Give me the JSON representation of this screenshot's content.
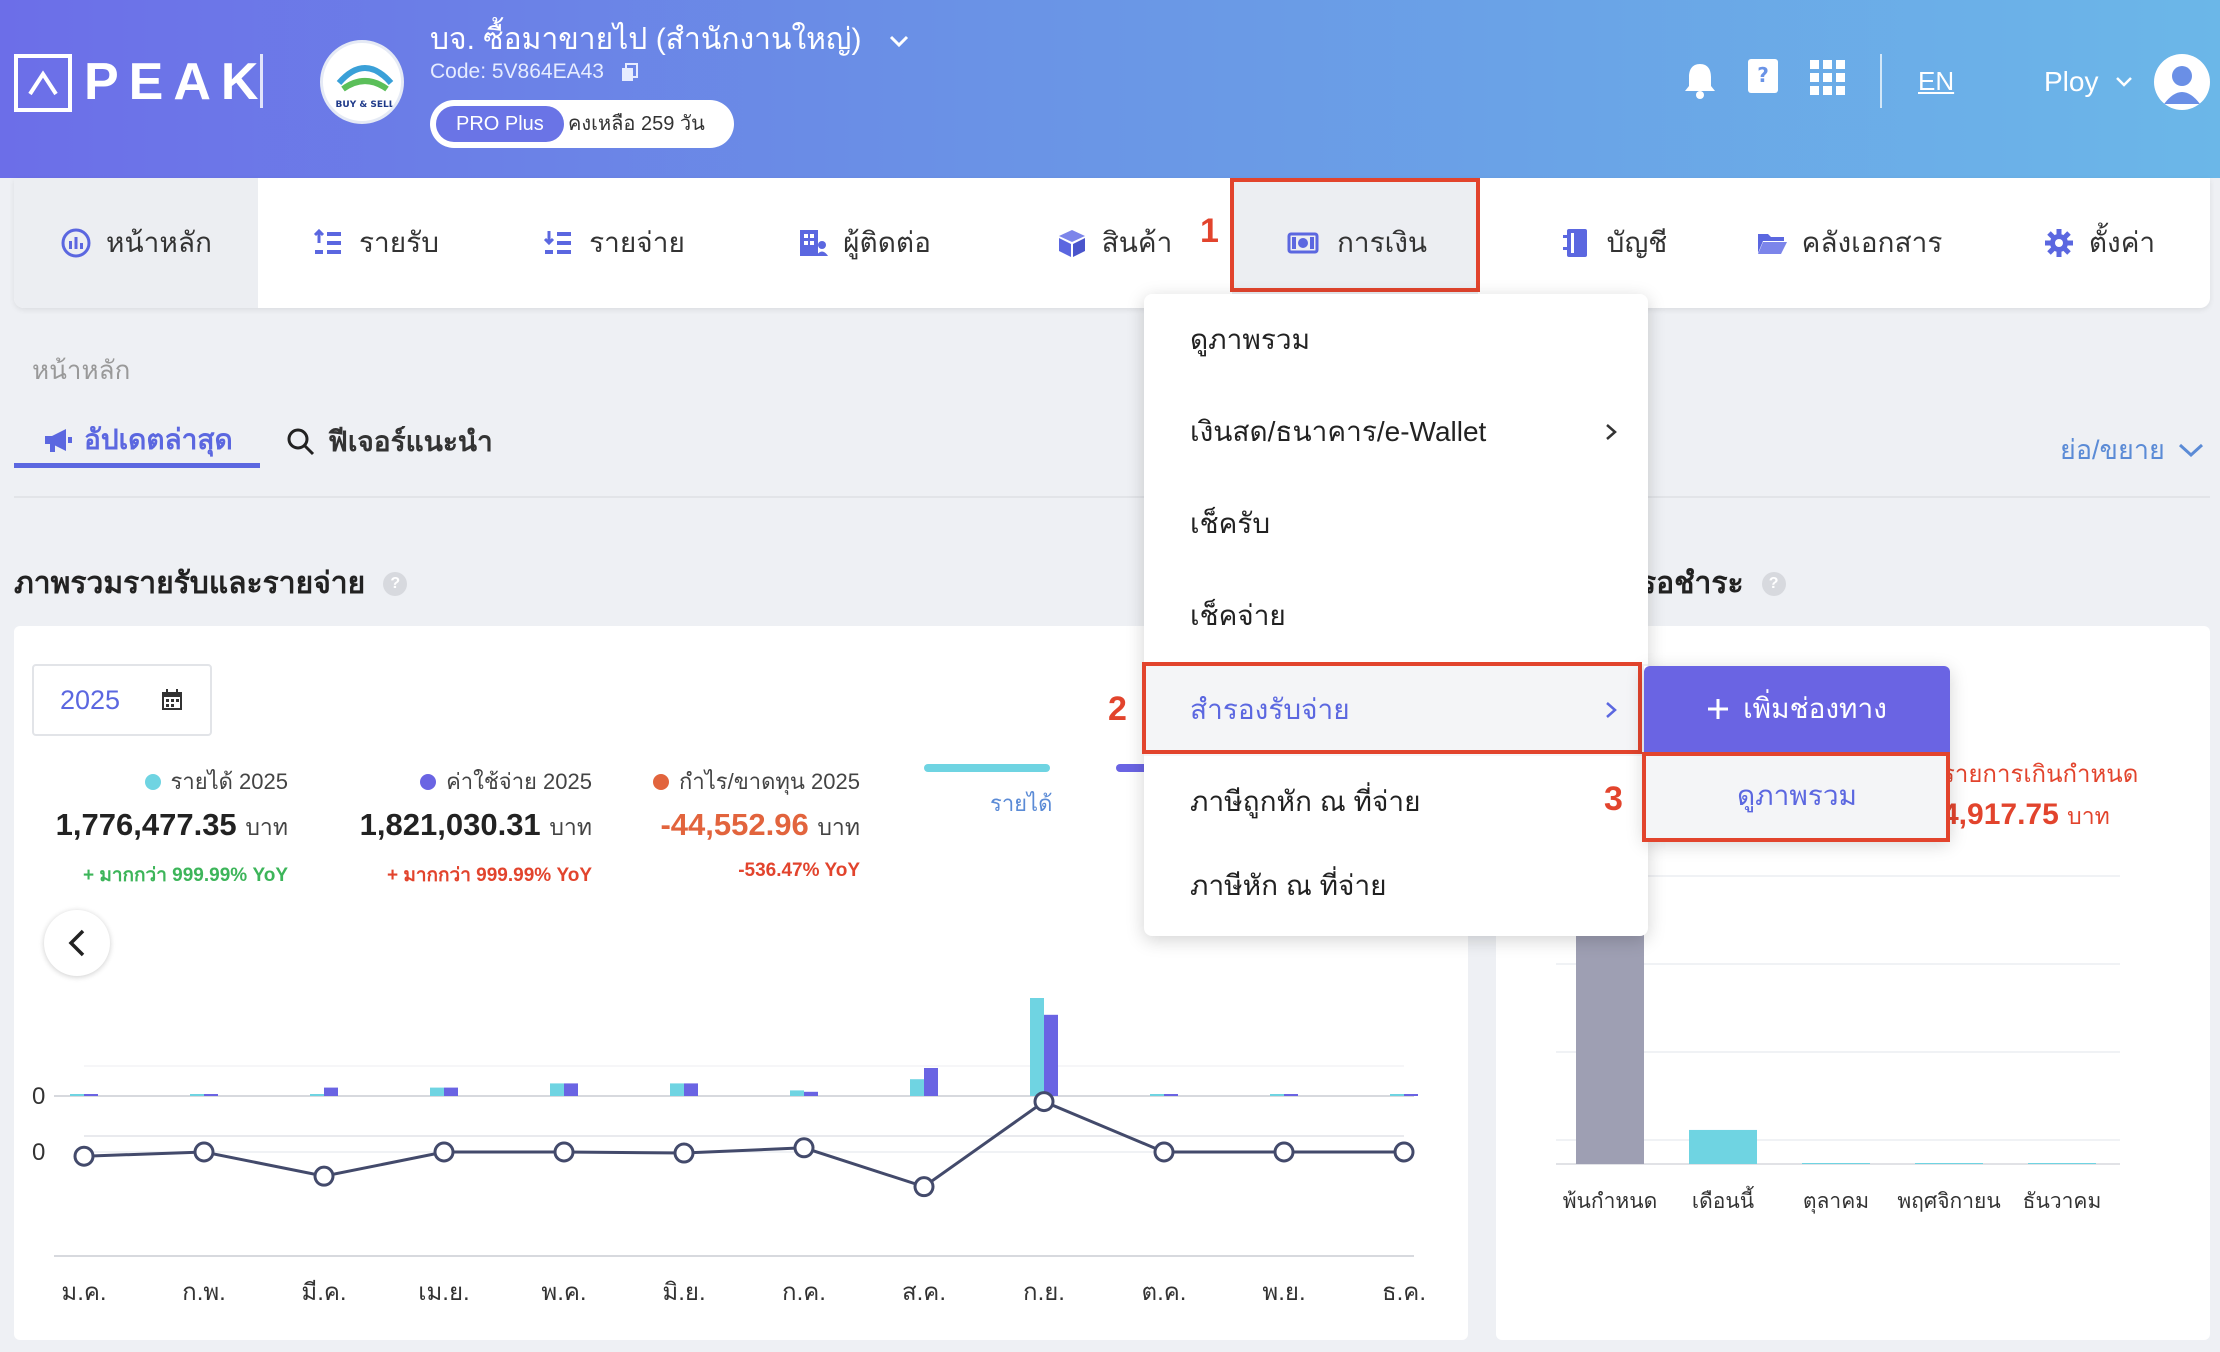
{
  "header": {
    "logo_text": "PEAK",
    "company_name": "บจ. ซื้อมาขายไป (สำนักงานใหญ่)",
    "company_code": "Code: 5V864EA43",
    "plan_name": "PRO Plus",
    "plan_days": "คงเหลือ 259 วัน",
    "language": "EN",
    "user_name": "Ploy",
    "company_logo_text": "BUY & SELL"
  },
  "nav": {
    "home": "หน้าหลัก",
    "income": "รายรับ",
    "expense": "รายจ่าย",
    "contacts": "ผู้ติดต่อ",
    "products": "สินค้า",
    "finance": "การเงิน",
    "accounts": "บัญชี",
    "documents": "คลังเอกสาร",
    "settings": "ตั้งค่า"
  },
  "steps": {
    "one": "1",
    "two": "2",
    "three": "3"
  },
  "breadcrumb": "หน้าหลัก",
  "tabs": {
    "updates": "อัปเดตล่าสุด",
    "features": "ฟีเจอร์แนะนำ",
    "collapse": "ย่อ/ขยาย"
  },
  "section": {
    "left_title": "ภาพรวมรายรับและรายจ่าย",
    "right_title": "รอชำระ"
  },
  "finance_menu": {
    "items": [
      "ดูภาพรวม",
      "เงินสด/ธนาคาร/e-Wallet",
      "เช็ครับ",
      "เช็คจ่าย",
      "สำรองรับจ่าย",
      "ภาษีถูกหัก ณ ที่จ่าย",
      "ภาษีหัก ณ ที่จ่าย"
    ],
    "submenu_add": "เพิ่มช่องทาง",
    "submenu_overview": "ดูภาพรวม"
  },
  "left_card": {
    "year": "2025",
    "stats": [
      {
        "label": "รายได้ 2025",
        "value": "1,776,477.35",
        "unit": "บาท",
        "yoy": "+ มากกว่า 999.99% YoY",
        "color": "#6fd4e2",
        "yoy_color": "#3db55a"
      },
      {
        "label": "ค่าใช้จ่าย 2025",
        "value": "1,821,030.31",
        "unit": "บาท",
        "yoy": "+ มากกว่า 999.99% YoY",
        "color": "#6a64e3",
        "yoy_color": "#e2442d"
      },
      {
        "label": "กำไร/ขาดทุน 2025",
        "value": "-44,552.96",
        "unit": "บาท",
        "yoy": "-536.47% YoY",
        "color": "#e2643d",
        "yoy_color": "#e2442d"
      }
    ],
    "legend_income": "รายได้"
  },
  "right_card": {
    "overdue_label": "รายการเกินกำหนด",
    "overdue_value": "4,917.75",
    "overdue_unit": "บาท"
  },
  "chart_data": [
    {
      "type": "bar",
      "categories": [
        "ม.ค.",
        "ก.พ.",
        "มี.ค.",
        "เม.ย.",
        "พ.ค.",
        "มิ.ย.",
        "ก.ค.",
        "ส.ค.",
        "ก.ย.",
        "ต.ค.",
        "พ.ย.",
        "ธ.ค."
      ],
      "series": [
        {
          "name": "รายได้",
          "values": [
            1,
            1,
            0,
            6,
            9,
            9,
            4,
            12,
            70,
            1,
            1,
            1
          ]
        },
        {
          "name": "ค่าใช้จ่าย",
          "values": [
            1,
            1,
            6,
            6,
            9,
            9,
            3,
            20,
            58,
            1,
            1,
            1
          ]
        }
      ],
      "y_tick_label": "0",
      "colors": {
        "income": "#6fd4e2",
        "expense": "#6a64e3"
      }
    },
    {
      "type": "line",
      "categories": [
        "ม.ค.",
        "ก.พ.",
        "มี.ค.",
        "เม.ย.",
        "พ.ค.",
        "มิ.ย.",
        "ก.ค.",
        "ส.ค.",
        "ก.ย.",
        "ต.ค.",
        "พ.ย.",
        "ธ.ค."
      ],
      "values": [
        -4,
        0,
        -23,
        0,
        0,
        -1,
        4,
        -33,
        48,
        0,
        0,
        0
      ],
      "y_tick_label": "0",
      "color": "#434a6b"
    },
    {
      "type": "bar",
      "categories": [
        "พ้นกำหนด",
        "เดือนนี้",
        "ตุลาคม",
        "พฤศจิกายน",
        "ธันวาคม"
      ],
      "values": [
        100,
        13,
        0,
        0,
        0
      ],
      "colors": [
        "#9e9fb3",
        "#6fd4e2",
        "#6fd4e2",
        "#6fd4e2",
        "#6fd4e2"
      ]
    }
  ]
}
